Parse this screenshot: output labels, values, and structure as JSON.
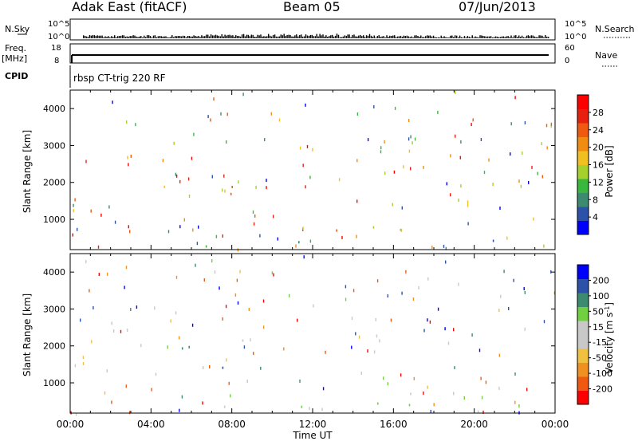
{
  "header": {
    "station": "Adak East (fitACF)",
    "beam": "Beam 05",
    "date": "07/Jun/2013"
  },
  "status_panels": {
    "nsky": {
      "label": "N.Sky",
      "ticks": [
        "10^5",
        "10^0"
      ],
      "right_ticks": [
        "10^5",
        "10^0"
      ]
    },
    "nsearch": {
      "label": "N.Search"
    },
    "freq": {
      "label_top": "Freq.",
      "label_unit": "[MHz]",
      "ticks": [
        "18",
        "8"
      ],
      "right_ticks": [
        "60",
        "0"
      ]
    },
    "nave": {
      "label": "Nave"
    },
    "cpid": {
      "label": "CPID",
      "program": "rbsp CT-trig 220 RF"
    }
  },
  "colors": {
    "power_scale": [
      "#0000ff",
      "#2b52a8",
      "#3c8a70",
      "#38b83c",
      "#a6d02c",
      "#f0c020",
      "#f08c10",
      "#f05a10",
      "#e82010",
      "#ff0000"
    ],
    "velocity_scale": [
      "#ff0000",
      "#f05a10",
      "#f09020",
      "#f0c040",
      "#c8c8c8",
      "#c8c8c8",
      "#70d040",
      "#3c8a70",
      "#2b52a8",
      "#0000ff"
    ]
  },
  "chart_data": [
    {
      "type": "heatmap",
      "name": "power",
      "xlabel": "",
      "ylabel": "Slant Range [km]",
      "yticks": [
        "1000",
        "2000",
        "3000",
        "4000"
      ],
      "ylim": [
        180,
        4500
      ],
      "xlim": [
        0,
        24
      ],
      "colorbar": {
        "label": "Power [dB]",
        "ticks": [
          "4",
          "8",
          "12",
          "16",
          "20",
          "24",
          "28"
        ],
        "range": [
          0,
          30
        ]
      },
      "features": [
        {
          "t0": 3.0,
          "t1": 5.5,
          "r0": 1700,
          "r1": 2400,
          "level": 0.55
        },
        {
          "t0": 5.0,
          "t1": 8.0,
          "r0": 1500,
          "r1": 2100,
          "level": 0.65
        },
        {
          "t0": 7.5,
          "t1": 10.0,
          "r0": 1100,
          "r1": 1800,
          "level": 0.7
        },
        {
          "t0": 9.5,
          "t1": 11.5,
          "r0": 900,
          "r1": 1400,
          "level": 0.75
        },
        {
          "t0": 11.5,
          "t1": 13.5,
          "r0": 250,
          "r1": 900,
          "level": 0.8
        },
        {
          "t0": 13.0,
          "t1": 15.5,
          "r0": 700,
          "r1": 1300,
          "level": 0.45
        },
        {
          "t0": 15.5,
          "t1": 19.0,
          "r0": 600,
          "r1": 1300,
          "level": 0.3
        },
        {
          "t0": 6.0,
          "t1": 7.5,
          "r0": 2600,
          "r1": 3300,
          "level": 0.35
        },
        {
          "t0": 0.0,
          "t1": 24.0,
          "r0": 180,
          "r1": 500,
          "level": 0.25
        }
      ]
    },
    {
      "type": "heatmap",
      "name": "velocity",
      "xlabel": "Time UT",
      "ylabel": "Slant Range [km]",
      "xticks": [
        "00:00",
        "04:00",
        "08:00",
        "12:00",
        "16:00",
        "20:00",
        "00:00"
      ],
      "yticks": [
        "1000",
        "2000",
        "3000",
        "4000"
      ],
      "ylim": [
        180,
        4500
      ],
      "xlim": [
        0,
        24
      ],
      "colorbar": {
        "label": "Velocity [m s",
        "label_sup": "-1",
        "label_end": "]",
        "ticks": [
          "200",
          "100",
          "50",
          "15",
          "-15",
          "-50",
          "-100",
          "-200"
        ],
        "range": [
          -250,
          250
        ]
      },
      "features": [
        {
          "t0": 3.0,
          "t1": 6.0,
          "r0": 1800,
          "r1": 2400,
          "level": 0.95
        },
        {
          "t0": 5.5,
          "t1": 8.0,
          "r0": 1500,
          "r1": 2100,
          "level": 0.9
        },
        {
          "t0": 7.5,
          "t1": 11.0,
          "r0": 950,
          "r1": 1600,
          "level": 0.95
        },
        {
          "t0": 10.5,
          "t1": 12.5,
          "r0": 1100,
          "r1": 1350,
          "level": 0.9
        },
        {
          "t0": 12.5,
          "t1": 15.5,
          "r0": 300,
          "r1": 1100,
          "level": 0.5
        },
        {
          "t0": 15.5,
          "t1": 19.0,
          "r0": 600,
          "r1": 1200,
          "level": 0.5
        },
        {
          "t0": 8.0,
          "t1": 10.5,
          "r0": 1900,
          "r1": 2600,
          "level": 0.35
        },
        {
          "t0": 16.5,
          "t1": 17.0,
          "r0": 1900,
          "r1": 2200,
          "level": 0.05
        },
        {
          "t0": 0.0,
          "t1": 24.0,
          "r0": 180,
          "r1": 450,
          "level": 0.55
        }
      ]
    }
  ]
}
